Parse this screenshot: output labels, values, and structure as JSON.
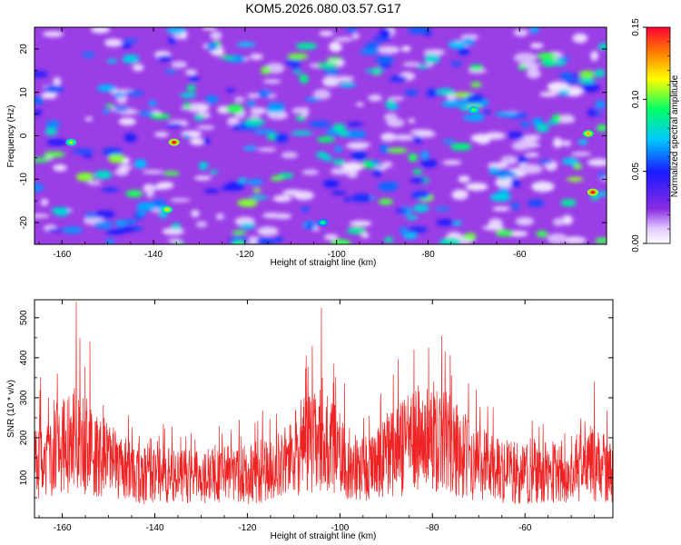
{
  "title": "KOM5.2026.080.03.57.G17",
  "chart_data": [
    {
      "type": "heatmap",
      "xlabel": "Height of straight line (km)",
      "ylabel": "Frequency (Hz)",
      "xlim": [
        -166,
        -41
      ],
      "ylim": [
        -25,
        25
      ],
      "xticks": [
        "-160",
        "-140",
        "-120",
        "-100",
        "-80",
        "-60"
      ],
      "xtick_values": [
        -160,
        -140,
        -120,
        -100,
        -80,
        -60
      ],
      "yticks": [
        "-20",
        "-10",
        "0",
        "10",
        "20"
      ],
      "ytick_values": [
        -20,
        -10,
        0,
        10,
        20
      ],
      "colorbar": {
        "label": "Normalized spectral amplitude",
        "range": [
          0,
          0.15
        ],
        "ticks": [
          "0.00",
          "0.05",
          "0.10",
          "0.15"
        ],
        "tick_values": [
          0,
          0.05,
          0.1,
          0.15
        ]
      },
      "peaks": [
        {
          "x": -135.5,
          "y": -1.5,
          "value": 0.15
        },
        {
          "x": -44,
          "y": -13,
          "value": 0.15
        },
        {
          "x": -45,
          "y": 0.5,
          "value": 0.13
        },
        {
          "x": -158,
          "y": -1.5,
          "value": 0.11
        },
        {
          "x": -137,
          "y": -17,
          "value": 0.12
        },
        {
          "x": -70,
          "y": 6,
          "value": 0.1
        },
        {
          "x": -103,
          "y": -20,
          "value": 0.09
        }
      ]
    },
    {
      "type": "line",
      "xlabel": "Height of straight line (km)",
      "ylabel": "SNR (10 * v/v)",
      "xlim": [
        -166,
        -41
      ],
      "ylim": [
        0,
        545
      ],
      "xticks": [
        "-160",
        "-140",
        "-120",
        "-100",
        "-80",
        "-60"
      ],
      "xtick_values": [
        -160,
        -140,
        -120,
        -100,
        -80,
        -60
      ],
      "yticks": [
        "100",
        "200",
        "300",
        "400",
        "500"
      ],
      "ytick_values": [
        100,
        200,
        300,
        400,
        500
      ],
      "color": "#ee2222",
      "envelope": {
        "x": [
          -166,
          -160,
          -157,
          -154,
          -150,
          -145,
          -140,
          -135,
          -130,
          -125,
          -120,
          -115,
          -110,
          -107,
          -104,
          -101,
          -98,
          -95,
          -90,
          -86,
          -82,
          -79,
          -76,
          -72,
          -68,
          -64,
          -60,
          -55,
          -50,
          -46,
          -41
        ],
        "mean": [
          150,
          175,
          200,
          185,
          140,
          115,
          108,
          105,
          103,
          108,
          112,
          125,
          160,
          190,
          195,
          170,
          135,
          120,
          150,
          185,
          210,
          205,
          185,
          150,
          130,
          118,
          112,
          118,
          125,
          140,
          120
        ]
      },
      "peaks": [
        {
          "x": -157,
          "y": 540
        },
        {
          "x": -104,
          "y": 525
        },
        {
          "x": -78,
          "y": 455
        },
        {
          "x": -154,
          "y": 440
        },
        {
          "x": -106,
          "y": 430
        },
        {
          "x": -84,
          "y": 420
        },
        {
          "x": -163,
          "y": 300
        },
        {
          "x": -45,
          "y": 340
        }
      ]
    }
  ]
}
